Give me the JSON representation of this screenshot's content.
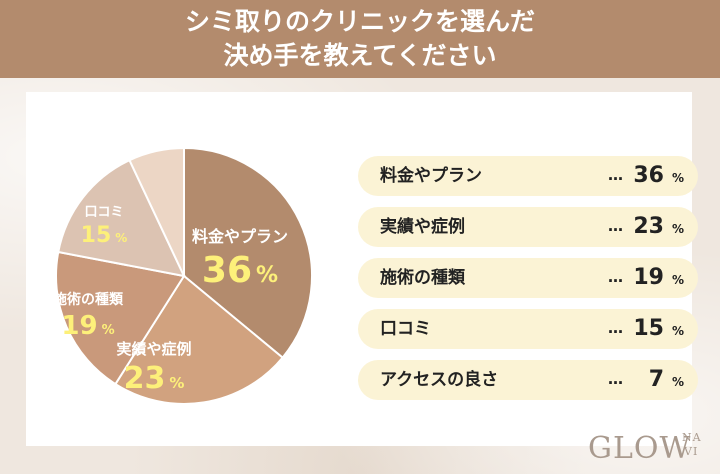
{
  "header": {
    "title_line1": "シミ取りのクリニックを選んだ",
    "title_line2": "決め手を教えてください"
  },
  "colors": {
    "header_bg": "#b38b6d",
    "legend_bg": "#fbf3d5",
    "label_value": "#fdf07a",
    "slice_colors": [
      "#b38b6d",
      "#d1a27f",
      "#c9997b",
      "#dcc3b2",
      "#ecd6c5"
    ]
  },
  "chart_data": {
    "type": "pie",
    "title": "シミ取りのクリニックを選んだ決め手を教えてください",
    "unit": "%",
    "series": [
      {
        "label": "料金やプラン",
        "value": 36
      },
      {
        "label": "実績や症例",
        "value": 23
      },
      {
        "label": "施術の種類",
        "value": 19
      },
      {
        "label": "口コミ",
        "value": 15
      },
      {
        "label": "アクセスの良さ",
        "value": 7
      }
    ],
    "legend_placement": "right",
    "legend_separator": "…"
  },
  "logo": {
    "main": "GLOW",
    "sub1": "NA",
    "sub2": "VI"
  }
}
